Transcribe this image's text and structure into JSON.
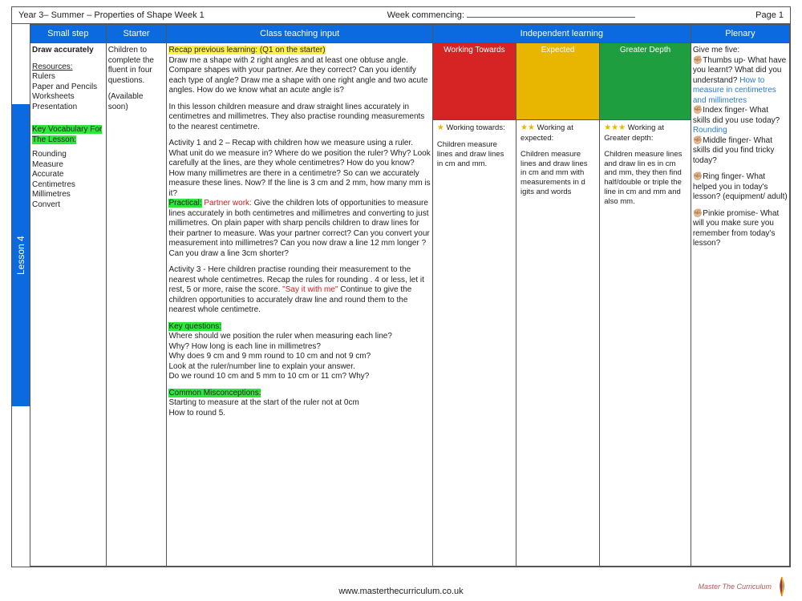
{
  "header": {
    "left": "Year 3– Summer – Properties of Shape Week 1",
    "mid": "Week commencing:",
    "page": "Page 1"
  },
  "lessonTab": "Lesson 4",
  "columns": {
    "smallStep": "Small step",
    "starter": "Starter",
    "classInput": "Class teaching input",
    "independent": "Independent learning",
    "plenary": "Plenary"
  },
  "widths": {
    "smallStep": "10%",
    "starter": "8%",
    "classInput": "35%",
    "wt": "11%",
    "ex": "11%",
    "gd": "12%",
    "plenary": "13%"
  },
  "indHeaders": {
    "wt": "Working Towards",
    "ex": "Expected",
    "gd": "Greater Depth"
  },
  "smallStep": {
    "title": "Draw accurately",
    "resourcesLabel": "Resources:",
    "resources": "Rulers\nPaper and Pencils\nWorksheets\nPresentation",
    "vocabLabel": "Key Vocabulary For The Lesson:",
    "vocab": "Rounding\nMeasure\nAccurate\nCentimetres\nMillimetres\nConvert"
  },
  "starter": {
    "text": "Children to complete the fluent in four questions.",
    "note": "(Available soon)"
  },
  "classInput": {
    "recapLabel": "Recap previous learning: (Q1 on the starter)",
    "recapBody": "Draw me a shape with 2 right angles and at least  one obtuse angle. Compare shapes with your partner.  Are they correct?  Can you identify each type of angle?  Draw me a shape with one right angle and two acute angles.  How do we know what an acute angle is?",
    "intro": "In this lesson children measure and draw straight lines accurately in centimetres and millimetres. They also practise rounding measurements to the nearest centimetre.",
    "activity12": "Activity 1 and 2 – Recap with children how we measure using a ruler. What unit do we measure in? Where do we position the ruler? Why? Look carefully at the lines, are they whole centimetres? How do you know?  How many millimetres are there in a centimetre?   So can we accurately measure these lines. Now?   If the line is 3 cm and 2 mm, how many mm is it?",
    "practicalLabel": "Practical:",
    "partnerLabel": "Partner work:",
    "partnerBody": " Give the children lots of opportunities to measure lines accurately in both centimetres and millimetres and converting to just millimetres.  On plain paper with sharp pencils children to draw lines for their partner to measure.  Was your partner correct?  Can you convert your measurement into millimetres?   Can you now draw a line 12 mm longer ?  Can you draw a line 3cm shorter?",
    "activity3a": "Activity 3 -  Here children practise rounding their measurement to the nearest whole centimetres.  Recap the rules for rounding . 4 or less, let it rest, 5 or more, raise the score. ",
    "sayIt": "\"Say it with me\"",
    "activity3b": " Continue to give the children opportunities to accurately draw line and round them to the nearest whole centimetre.",
    "keyQLabel": "Key questions:",
    "keyQBody": "Where should we position the ruler when measuring each line?\nWhy? How long is each line in millimetres?\nWhy does 9 cm and 9 mm  round to 10 cm and not 9 cm?\nLook at the ruler/number line to explain your answer.\nDo we round 10 cm and 5 mm to 10 cm or 11 cm? Why?",
    "misLabel": "Common Misconceptions:",
    "misBody": "Starting to measure at the start of the ruler not at 0cm\nHow to round 5."
  },
  "independent": {
    "wtTitle": " Working towards:",
    "wtBody": "Children measure lines and draw lines in cm and mm.",
    "exTitle": " Working at expected:",
    "exBody": "Children measure lines and draw lines in cm and mm with measurements in d igits and words",
    "gdTitle": " Working at Greater depth:",
    "gdBody": "Children measure lines and draw lin es in cm and mm, they then find half/double or triple the line in cm and mm and also mm."
  },
  "plenary": {
    "intro": "Give me five:",
    "thumb": "Thumbs up- What have you learnt? What did you understand?",
    "thumbBlue": "How to measure in centimetres and millimetres",
    "index": "Index finger- What skills did you use today?",
    "indexBlue": "Rounding",
    "middle": "Middle finger- What skills did you find tricky today?",
    "ring": "Ring finger- What helped you in today's lesson? (equipment/ adult)",
    "pinkie": "Pinkie promise- What will you make sure you remember from today's lesson?"
  },
  "footer": {
    "url": "www.masterthecurriculum.co.uk",
    "brand": "Master The Curriculum"
  }
}
